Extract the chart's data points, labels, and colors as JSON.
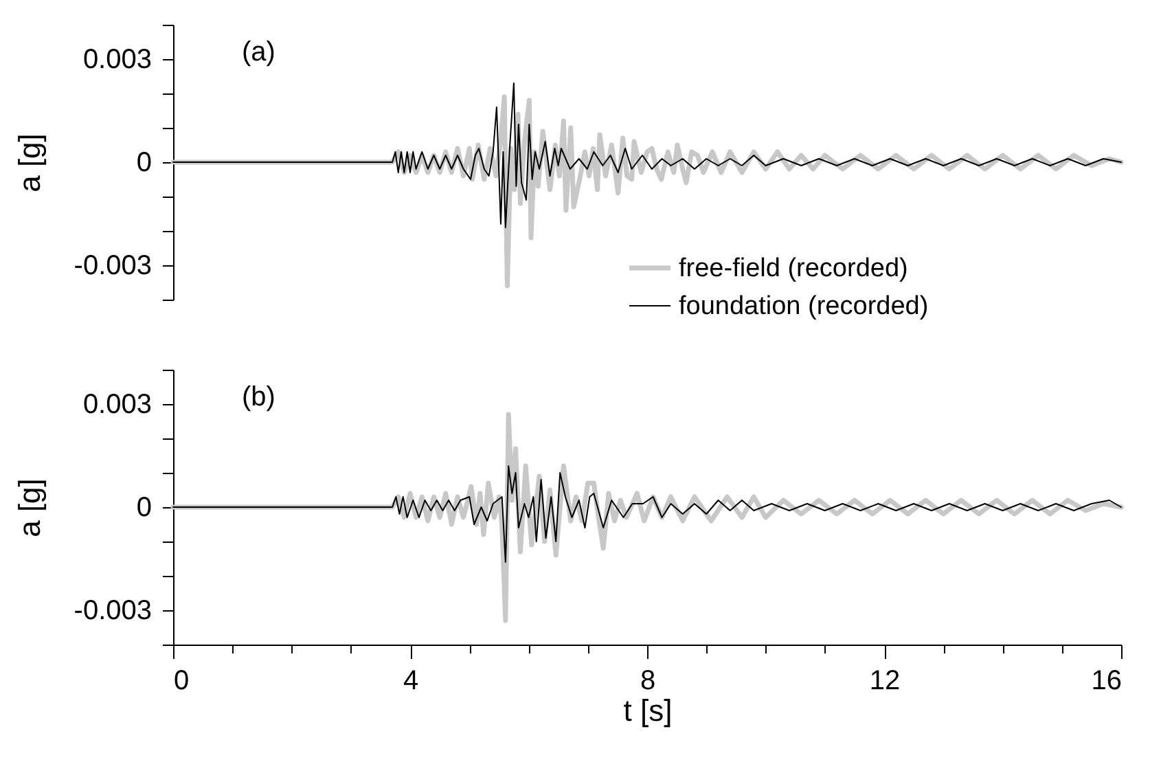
{
  "chart_data": [
    {
      "type": "line",
      "annotations": [
        "(a)"
      ],
      "ylabel": "a [g]",
      "xlim": [
        0,
        16
      ],
      "ylim": [
        -0.004,
        0.004
      ],
      "yticks": [
        {
          "value": 0.004,
          "label": null
        },
        0.003,
        {
          "value": 0.002,
          "label": null
        },
        {
          "value": 0.001,
          "label": null
        },
        0,
        {
          "value": -0.001,
          "label": null
        },
        {
          "value": -0.002,
          "label": null
        },
        -0.003,
        {
          "value": -0.004,
          "label": null
        }
      ],
      "tick_labels": "y",
      "grid": false,
      "legend": "bottom right",
      "series": [
        {
          "name": "free-field (recorded)",
          "color": "#c8c8c8",
          "x": [
            0,
            3.7,
            3.8,
            3.9,
            4.0,
            4.1,
            4.2,
            4.3,
            4.4,
            4.5,
            4.6,
            4.7,
            4.8,
            4.9,
            5.0,
            5.05,
            5.15,
            5.25,
            5.35,
            5.45,
            5.52,
            5.59,
            5.64,
            5.7,
            5.76,
            5.82,
            5.86,
            5.93,
            6.01,
            6.04,
            6.1,
            6.16,
            6.24,
            6.36,
            6.45,
            6.52,
            6.59,
            6.63,
            6.71,
            6.76,
            6.86,
            6.95,
            7.02,
            7.09,
            7.16,
            7.2,
            7.3,
            7.4,
            7.51,
            7.59,
            7.66,
            7.74,
            7.78,
            7.9,
            8.0,
            8.08,
            8.16,
            8.24,
            8.35,
            8.45,
            8.51,
            8.6,
            8.66,
            8.75,
            8.85,
            8.95,
            9.1,
            9.25,
            9.4,
            9.6,
            9.8,
            10.0,
            10.2,
            10.4,
            10.6,
            10.8,
            11.0,
            11.3,
            11.6,
            11.9,
            12.2,
            12.5,
            12.8,
            13.1,
            13.4,
            13.7,
            14.0,
            14.3,
            14.6,
            14.9,
            15.2,
            15.5,
            15.8,
            16
          ],
          "values": [
            0,
            0,
            0.0003,
            -0.0003,
            0.0002,
            -0.0003,
            0.0002,
            -0.0003,
            0.0002,
            -0.0003,
            0.0003,
            -0.0003,
            0.0004,
            -0.0004,
            0.0004,
            -0.0005,
            0.0005,
            -0.0005,
            0.0004,
            -0.0004,
            0.0005,
            0.0019,
            -0.0036,
            0.0004,
            -0.0008,
            0.0014,
            -0.0012,
            0.0006,
            0.0018,
            -0.0022,
            0.0003,
            -0.0007,
            0.0009,
            -0.0008,
            0.0005,
            -0.0004,
            0.0012,
            -0.0014,
            0.001,
            -0.0013,
            -0.0005,
            0.0003,
            -0.0004,
            0.0004,
            -0.0008,
            0.0008,
            -0.0004,
            0.0005,
            -0.0009,
            0.0007,
            -0.0004,
            -0.0005,
            0.0006,
            -0.0003,
            0.0003,
            0.0004,
            -0.0002,
            -0.0005,
            0.0003,
            -0.0003,
            0.0005,
            -0.0002,
            -0.0006,
            0.0003,
            0.0002,
            -0.0003,
            0.0003,
            -0.0003,
            0.0003,
            -0.0003,
            0.0003,
            -0.0002,
            0.0003,
            -0.0002,
            0.0002,
            -0.0002,
            0.0002,
            -0.0002,
            0.0002,
            -0.0002,
            0.0002,
            -0.0002,
            0.0002,
            -0.0002,
            0.0002,
            -0.0002,
            0.0002,
            -0.0002,
            0.0002,
            -0.0002,
            0.0002,
            -0.0001,
            0.0001,
            0
          ]
        },
        {
          "name": "foundation (recorded)",
          "color": "#000000",
          "x": [
            0,
            3.7,
            3.75,
            3.8,
            3.85,
            3.9,
            3.95,
            4.0,
            4.05,
            4.1,
            4.2,
            4.3,
            4.4,
            4.5,
            4.6,
            4.7,
            4.8,
            4.9,
            5.02,
            5.1,
            5.16,
            5.25,
            5.33,
            5.4,
            5.46,
            5.53,
            5.57,
            5.61,
            5.68,
            5.75,
            5.79,
            5.83,
            5.88,
            5.96,
            6.01,
            6.06,
            6.11,
            6.18,
            6.28,
            6.36,
            6.44,
            6.5,
            6.55,
            6.7,
            6.85,
            6.99,
            7.1,
            7.25,
            7.38,
            7.51,
            7.63,
            7.74,
            7.92,
            8.08,
            8.25,
            8.4,
            8.6,
            8.8,
            9.0,
            9.2,
            9.4,
            9.6,
            9.8,
            10.0,
            10.3,
            10.6,
            10.9,
            11.2,
            11.5,
            11.8,
            12.1,
            12.4,
            12.7,
            13.0,
            13.3,
            13.6,
            13.9,
            14.2,
            14.5,
            14.8,
            15.1,
            15.4,
            15.7,
            16
          ],
          "values": [
            0,
            0,
            0.0003,
            -0.0003,
            0.0003,
            -0.0003,
            0.0003,
            -0.0003,
            0.0003,
            -0.0002,
            0.0003,
            -0.0002,
            0.0002,
            -0.0002,
            0.0002,
            -0.0002,
            0.0002,
            -0.0002,
            -0.0005,
            0.0002,
            0.0004,
            -0.0002,
            -0.0004,
            0.0003,
            0.0016,
            -0.0018,
            0.0003,
            -0.0019,
            0.0004,
            0.0023,
            -0.0007,
            0.0011,
            -0.0006,
            -0.0011,
            0.0011,
            -0.0005,
            0.0003,
            -0.0002,
            0.0006,
            -0.0004,
            0.0004,
            -0.0001,
            0.0004,
            -0.0002,
            0.0001,
            -0.0002,
            0.0003,
            -0.0001,
            0.0002,
            -0.0003,
            0.0004,
            -0.0002,
            0.0002,
            -0.0002,
            0.0001,
            -0.0001,
            0.0001,
            -0.0002,
            0.0001,
            -0.0001,
            0.0001,
            -0.0001,
            0.0002,
            -0.0001,
            0.0001,
            -0.0001,
            0.0001,
            -0.0001,
            0.0001,
            -0.0001,
            0.0001,
            -0.0001,
            0.0001,
            -0.0001,
            0.0001,
            -0.0001,
            0.0001,
            -0.0001,
            0.0001,
            -0.0001,
            0.0001,
            -0.0001,
            0.0001,
            0
          ]
        }
      ]
    },
    {
      "type": "line",
      "annotations": [
        "(b)"
      ],
      "xlabel": "t [s]",
      "ylabel": "a [g]",
      "xlim": [
        0,
        16
      ],
      "ylim": [
        -0.004,
        0.004
      ],
      "xticks": [
        0,
        {
          "value": 1,
          "label": null
        },
        {
          "value": 2,
          "label": null
        },
        {
          "value": 3,
          "label": null
        },
        4,
        {
          "value": 5,
          "label": null
        },
        {
          "value": 6,
          "label": null
        },
        {
          "value": 7,
          "label": null
        },
        8,
        {
          "value": 9,
          "label": null
        },
        {
          "value": 10,
          "label": null
        },
        {
          "value": 11,
          "label": null
        },
        12,
        {
          "value": 13,
          "label": null
        },
        {
          "value": 14,
          "label": null
        },
        {
          "value": 15,
          "label": null
        },
        16
      ],
      "yticks": [
        {
          "value": 0.004,
          "label": null
        },
        0.003,
        {
          "value": 0.002,
          "label": null
        },
        {
          "value": 0.001,
          "label": null
        },
        0,
        {
          "value": -0.001,
          "label": null
        },
        {
          "value": -0.002,
          "label": null
        },
        -0.003,
        {
          "value": -0.004,
          "label": null
        }
      ],
      "grid": false,
      "series": [
        {
          "color": "#c8c8c8",
          "x": [
            0,
            3.7,
            3.8,
            3.9,
            4.0,
            4.1,
            4.2,
            4.3,
            4.4,
            4.5,
            4.6,
            4.7,
            4.8,
            4.9,
            5.03,
            5.12,
            5.18,
            5.24,
            5.32,
            5.42,
            5.5,
            5.55,
            5.61,
            5.66,
            5.72,
            5.78,
            5.86,
            5.95,
            6.05,
            6.18,
            6.27,
            6.36,
            6.46,
            6.59,
            6.71,
            6.8,
            6.9,
            7.0,
            7.1,
            7.18,
            7.26,
            7.35,
            7.45,
            7.55,
            7.65,
            7.83,
            7.95,
            8.1,
            8.25,
            8.4,
            8.6,
            8.8,
            9.08,
            9.35,
            9.6,
            9.8,
            10.0,
            10.3,
            10.6,
            10.9,
            11.2,
            11.5,
            11.8,
            12.1,
            12.4,
            12.7,
            13.0,
            13.3,
            13.6,
            13.9,
            14.2,
            14.5,
            14.8,
            15.1,
            15.4,
            15.7,
            16
          ],
          "values": [
            0,
            0,
            0.0003,
            -0.0003,
            0.0004,
            -0.0003,
            0.0003,
            -0.0004,
            0.0003,
            -0.0003,
            0.0004,
            -0.0005,
            0.0003,
            -0.0003,
            0.0006,
            -0.0005,
            0.0004,
            -0.0008,
            0.0007,
            -0.0003,
            0.0003,
            -0.0005,
            -0.0033,
            0.0027,
            0.0002,
            0.0017,
            -0.0013,
            0.0012,
            -0.0011,
            0.0009,
            -0.001,
            0.0005,
            -0.0014,
            0.0012,
            -0.0004,
            0.0003,
            -0.0004,
            0.0007,
            0.0007,
            -0.0003,
            -0.0012,
            0.0004,
            -0.0004,
            0.0002,
            -0.0003,
            0.0004,
            -0.0004,
            0.0003,
            -0.0003,
            0.0003,
            -0.0004,
            0.0003,
            -0.0004,
            0.0003,
            -0.0003,
            0.0003,
            -0.0003,
            0.0002,
            -0.0002,
            0.0002,
            -0.0002,
            0.0002,
            -0.0002,
            0.0002,
            -0.0002,
            0.0002,
            -0.0002,
            0.0002,
            -0.0002,
            0.0002,
            -0.0002,
            0.0002,
            -0.0002,
            0.0002,
            -0.0001,
            0.0001,
            0
          ]
        },
        {
          "color": "#000000",
          "x": [
            0,
            3.7,
            3.76,
            3.82,
            3.88,
            3.95,
            4.05,
            4.15,
            4.25,
            4.35,
            4.45,
            4.55,
            4.65,
            4.75,
            4.85,
            5.0,
            5.08,
            5.2,
            5.3,
            5.4,
            5.55,
            5.61,
            5.66,
            5.72,
            5.78,
            5.83,
            5.93,
            6.0,
            6.08,
            6.13,
            6.21,
            6.29,
            6.38,
            6.46,
            6.53,
            6.62,
            6.73,
            6.85,
            6.95,
            7.03,
            7.1,
            7.26,
            7.4,
            7.6,
            7.75,
            7.93,
            8.1,
            8.25,
            8.4,
            8.6,
            8.8,
            9.0,
            9.2,
            9.4,
            9.6,
            9.8,
            10.1,
            10.4,
            10.7,
            11.0,
            11.3,
            11.6,
            11.9,
            12.2,
            12.5,
            12.8,
            13.1,
            13.4,
            13.7,
            14.0,
            14.3,
            14.6,
            14.9,
            15.2,
            15.5,
            15.8,
            16
          ],
          "values": [
            0,
            0,
            0.0003,
            -0.0002,
            0.0003,
            -0.0003,
            0.0002,
            -0.0003,
            0.0002,
            -0.0001,
            0.0002,
            -0.0001,
            0.0002,
            -0.0001,
            0.0002,
            0.0003,
            -0.0005,
            0,
            -0.0004,
            0.0001,
            0.0003,
            -0.0016,
            0.0012,
            0.0004,
            0.001,
            -0.0006,
            0.0001,
            -0.0003,
            0.0003,
            -0.001,
            0.0008,
            -0.0009,
            0.0003,
            -0.001,
            0.001,
            0.0003,
            -0.0003,
            0.0002,
            -0.0006,
            0.0003,
            0.0004,
            -0.0006,
            0.0002,
            -0.0003,
            0.0001,
            0.0001,
            0.0003,
            -0.0003,
            0.0001,
            -0.0002,
            0.0001,
            -0.0002,
            0.0002,
            -0.0001,
            0.0002,
            -0.0001,
            0.0001,
            -0.0001,
            0.0001,
            -0.0001,
            0.0001,
            -0.0001,
            0.0001,
            -0.0001,
            0.0001,
            -0.0001,
            0.0001,
            -0.0001,
            0.0001,
            -0.0001,
            0.0001,
            -0.0001,
            0.0001,
            -0.0001,
            0.0001,
            0.0002,
            0
          ]
        }
      ]
    }
  ]
}
